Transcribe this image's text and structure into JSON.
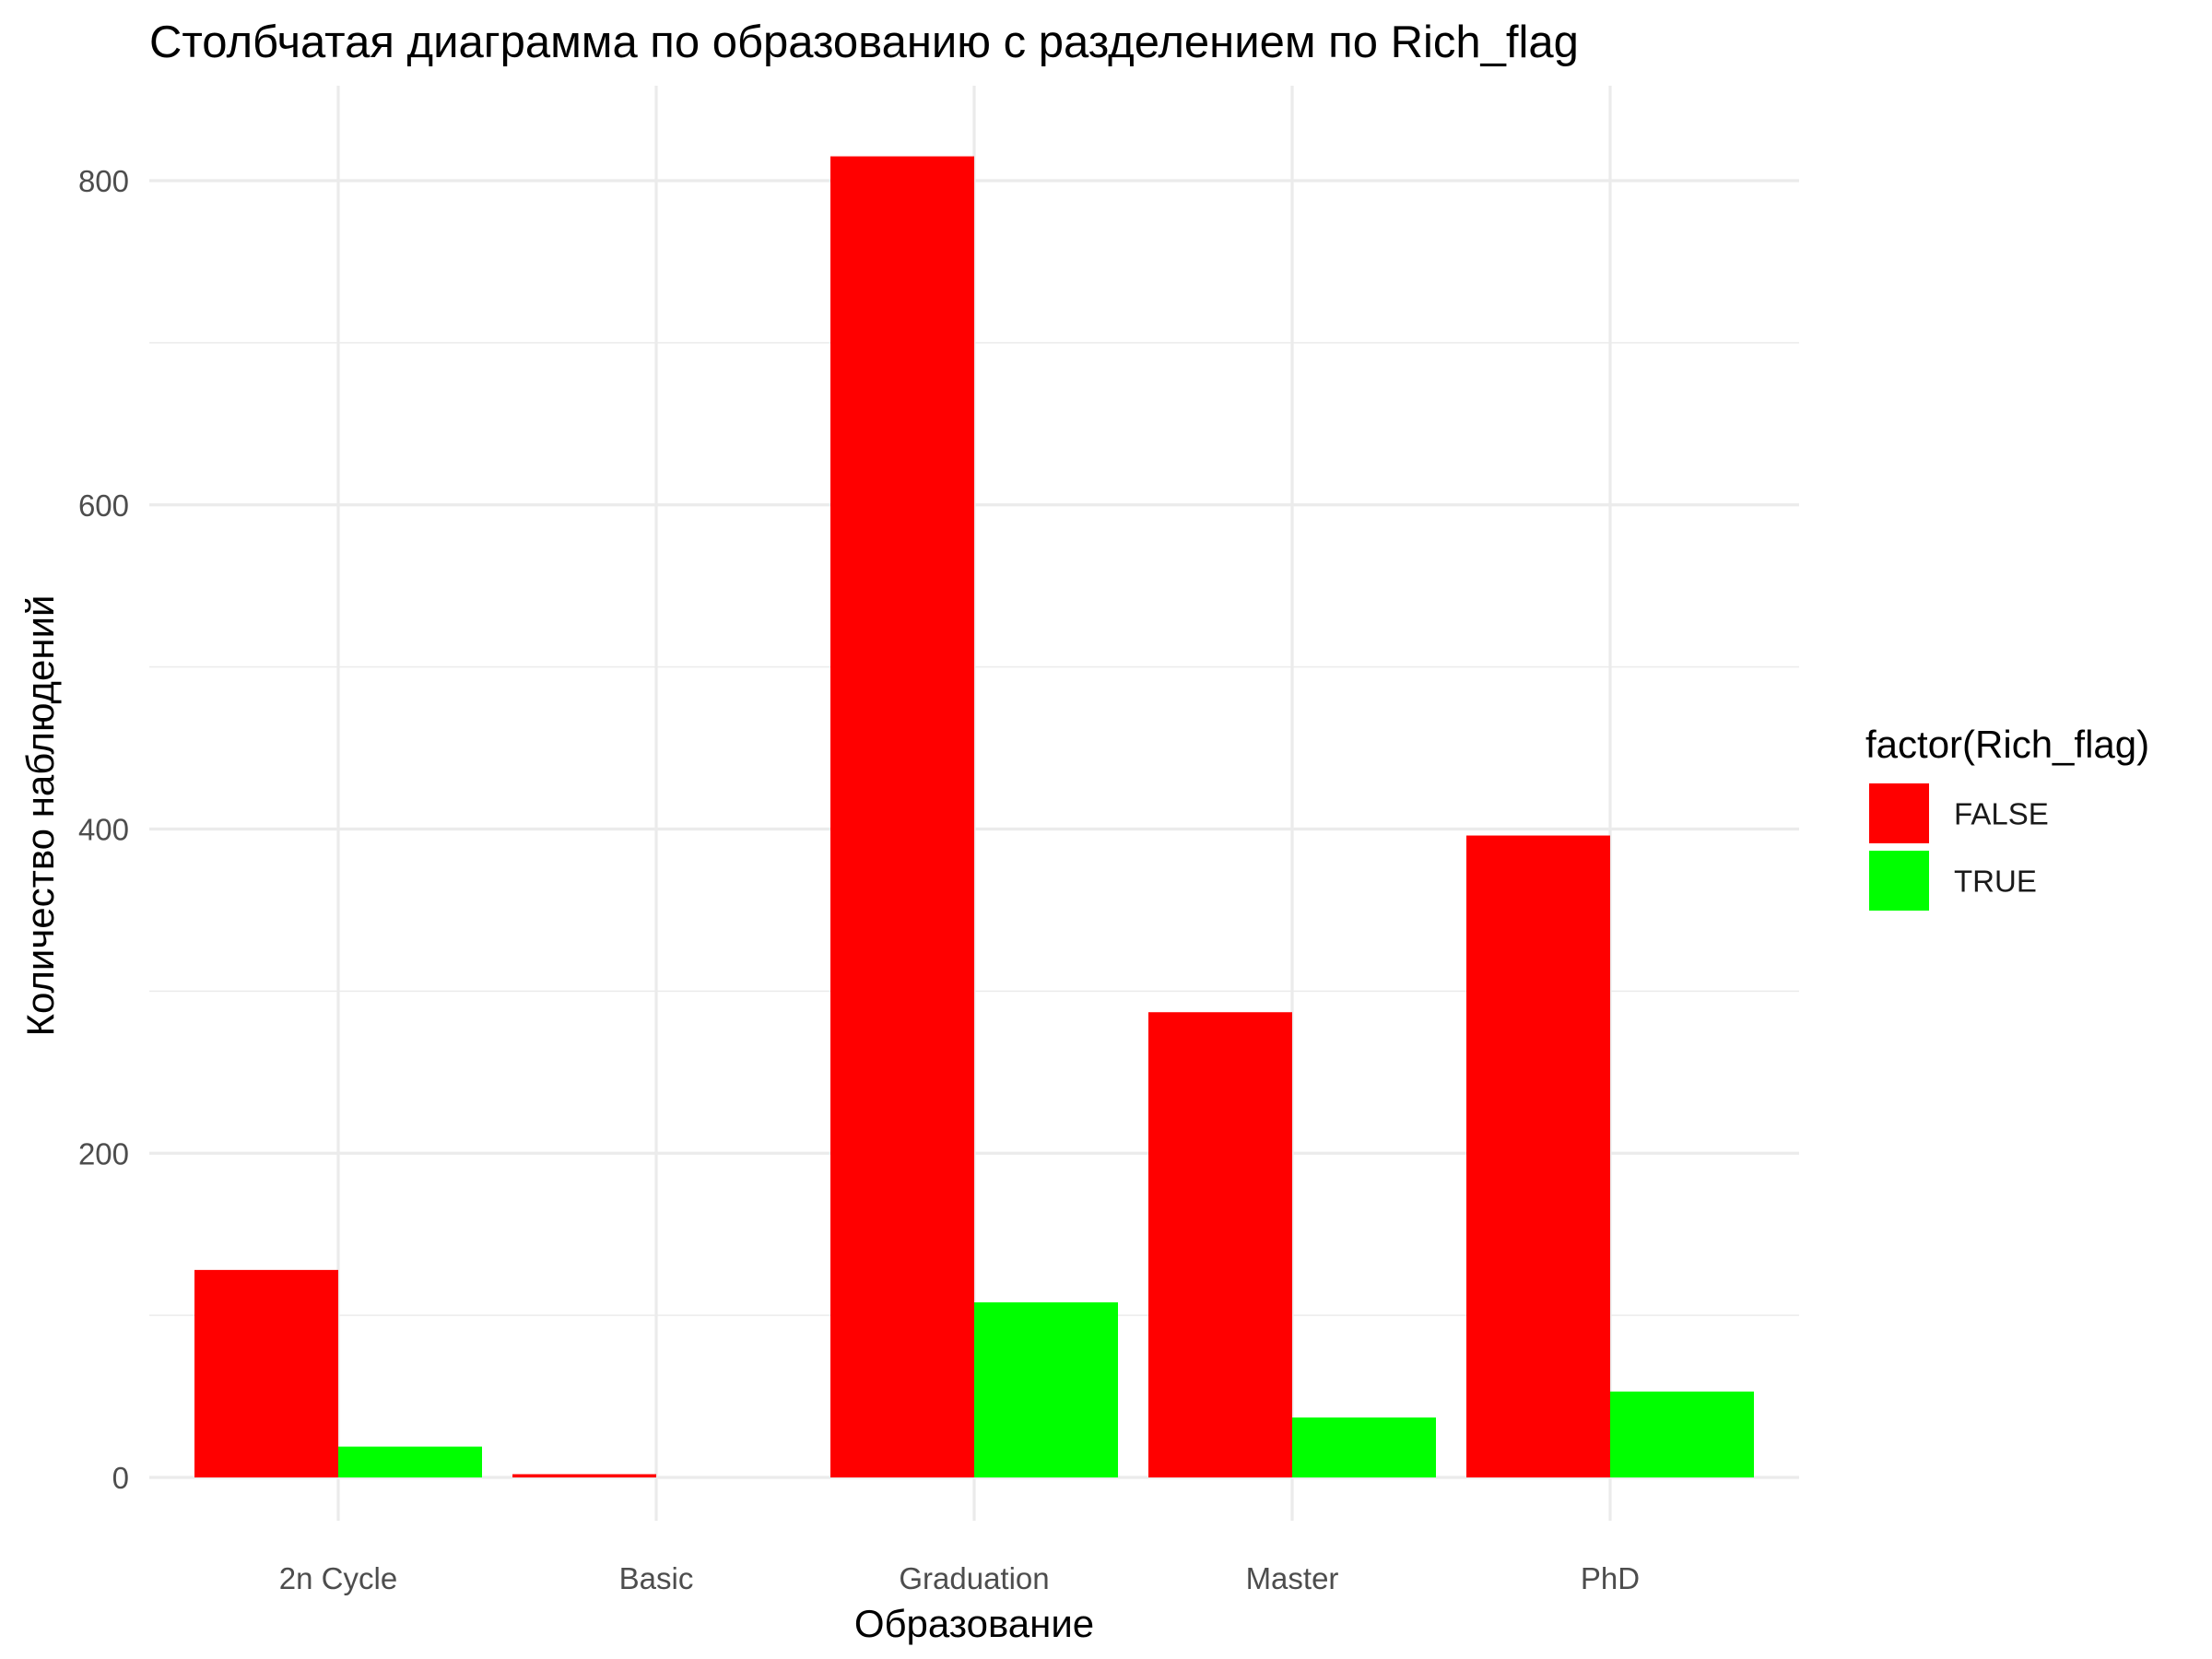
{
  "chart_data": {
    "type": "bar",
    "title": "Столбчатая диаграмма по образованию с разделением по Rich_flag",
    "xlabel": "Образование",
    "ylabel": "Количество наблюдений",
    "categories": [
      "2n Cycle",
      "Basic",
      "Graduation",
      "Master",
      "PhD"
    ],
    "series": [
      {
        "name": "FALSE",
        "values": [
          128,
          2,
          815,
          287,
          396
        ],
        "color": "#FF0000"
      },
      {
        "name": "TRUE",
        "values": [
          19,
          0,
          108,
          37,
          53
        ],
        "color": "#00FF00"
      }
    ],
    "ylim": [
      0,
      850
    ],
    "y_ticks": [
      0,
      200,
      400,
      600,
      800
    ],
    "y_minor_ticks": [
      100,
      300,
      500,
      700
    ],
    "grid": true,
    "legend": {
      "title": "factor(Rich_flag)",
      "position": "right"
    }
  }
}
